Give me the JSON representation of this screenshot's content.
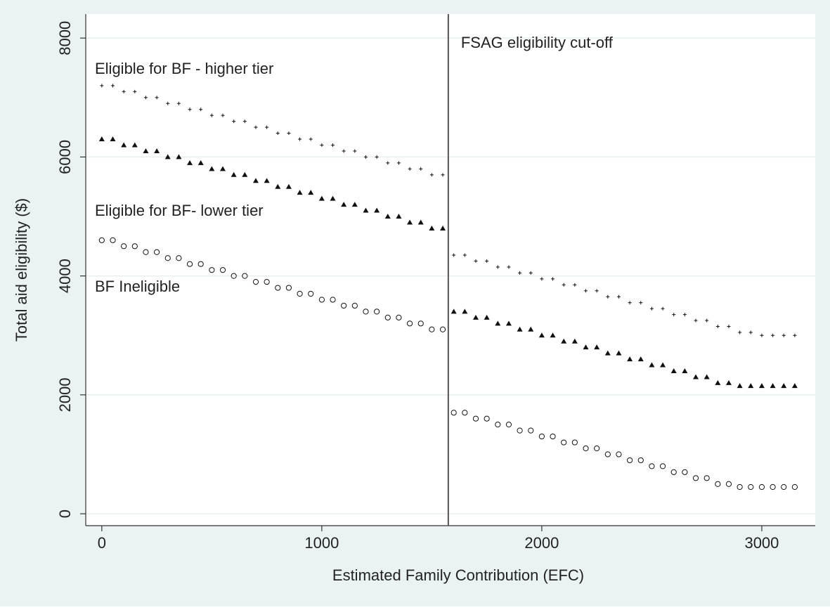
{
  "chart_data": {
    "type": "scatter",
    "xlabel": "Estimated Family Contribution (EFC)",
    "ylabel": "Total aid eligibility ($)",
    "annotation": "FSAG eligibility cut-off",
    "cutoff": 1575,
    "x": [
      0,
      50,
      100,
      150,
      200,
      250,
      300,
      350,
      400,
      450,
      500,
      550,
      600,
      650,
      700,
      750,
      800,
      850,
      900,
      950,
      1000,
      1050,
      1100,
      1150,
      1200,
      1250,
      1300,
      1350,
      1400,
      1450,
      1500,
      1550,
      1600,
      1650,
      1700,
      1750,
      1800,
      1850,
      1900,
      1950,
      2000,
      2050,
      2100,
      2150,
      2200,
      2250,
      2300,
      2350,
      2400,
      2450,
      2500,
      2550,
      2600,
      2650,
      2700,
      2750,
      2800,
      2850,
      2900,
      2950,
      3000,
      3050,
      3100,
      3150
    ],
    "series": [
      {
        "name": "Eligible for BF - higher tier",
        "marker": "plus",
        "color": "#111111",
        "values": [
          7200,
          7200,
          7100,
          7100,
          7000,
          7000,
          6900,
          6900,
          6800,
          6800,
          6700,
          6700,
          6600,
          6600,
          6500,
          6500,
          6400,
          6400,
          6300,
          6300,
          6200,
          6200,
          6100,
          6100,
          6000,
          6000,
          5900,
          5900,
          5800,
          5800,
          5700,
          5700,
          4350,
          4350,
          4250,
          4250,
          4150,
          4150,
          4050,
          4050,
          3950,
          3950,
          3850,
          3850,
          3750,
          3750,
          3650,
          3650,
          3550,
          3550,
          3450,
          3450,
          3350,
          3350,
          3250,
          3250,
          3150,
          3150,
          3050,
          3050,
          3000,
          3000,
          3000,
          3000
        ]
      },
      {
        "name": "Eligible for BF- lower tier",
        "marker": "triangle",
        "color": "#111111",
        "values": [
          6300,
          6300,
          6200,
          6200,
          6100,
          6100,
          6000,
          6000,
          5900,
          5900,
          5800,
          5800,
          5700,
          5700,
          5600,
          5600,
          5500,
          5500,
          5400,
          5400,
          5300,
          5300,
          5200,
          5200,
          5100,
          5100,
          5000,
          5000,
          4900,
          4900,
          4800,
          4800,
          3400,
          3400,
          3300,
          3300,
          3200,
          3200,
          3100,
          3100,
          3000,
          3000,
          2900,
          2900,
          2800,
          2800,
          2700,
          2700,
          2600,
          2600,
          2500,
          2500,
          2400,
          2400,
          2300,
          2300,
          2200,
          2200,
          2150,
          2150,
          2150,
          2150,
          2150,
          2150
        ]
      },
      {
        "name": "BF Ineligible",
        "marker": "circle",
        "color": "#111111",
        "values": [
          4600,
          4600,
          4500,
          4500,
          4400,
          4400,
          4300,
          4300,
          4200,
          4200,
          4100,
          4100,
          4000,
          4000,
          3900,
          3900,
          3800,
          3800,
          3700,
          3700,
          3600,
          3600,
          3500,
          3500,
          3400,
          3400,
          3300,
          3300,
          3200,
          3200,
          3100,
          3100,
          1700,
          1700,
          1600,
          1600,
          1500,
          1500,
          1400,
          1400,
          1300,
          1300,
          1200,
          1200,
          1100,
          1100,
          1000,
          1000,
          900,
          900,
          800,
          800,
          700,
          700,
          600,
          600,
          500,
          500,
          450,
          450,
          450,
          450,
          450,
          450
        ]
      }
    ],
    "xlim": [
      -73,
      3243
    ],
    "ylim": [
      -200,
      8404
    ],
    "xticks": [
      0,
      1000,
      2000,
      3000
    ],
    "yticks": [
      0,
      2000,
      4000,
      6000,
      8000
    ],
    "grid": true
  }
}
